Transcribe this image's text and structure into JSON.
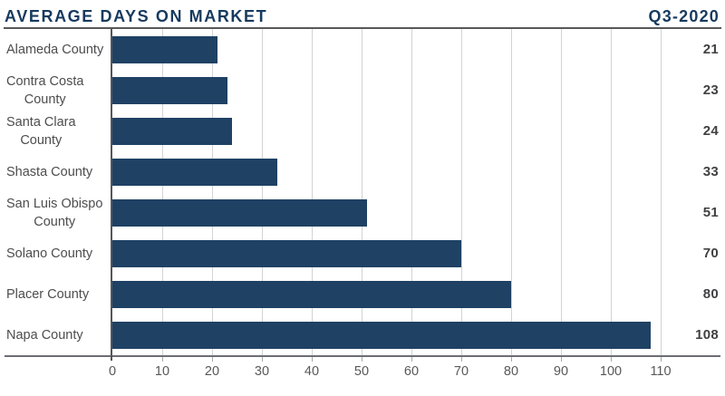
{
  "header": {
    "title": "AVERAGE DAYS ON MARKET",
    "period": "Q3-2020"
  },
  "colors": {
    "bar_navy": "#1f4164",
    "title_navy": "#173a5e",
    "gridline_gray": "#d1d3d4",
    "axis_dark_gray": "#55565a",
    "axis_light_gray": "#6d6e71",
    "tick_gray": "#a7a9ac",
    "category_text": "#4d4d4f",
    "value_text": "#414042"
  },
  "chart_data": {
    "type": "bar",
    "orientation": "horizontal",
    "title": "AVERAGE DAYS ON MARKET",
    "subtitle": "Q3-2020",
    "categories": [
      "Alameda County",
      "Contra Costa County",
      "Santa Clara County",
      "Shasta County",
      "San Luis Obispo County",
      "Solano County",
      "Placer County",
      "Napa County"
    ],
    "category_lines": [
      [
        "Alameda County"
      ],
      [
        "Contra Costa",
        "County"
      ],
      [
        "Santa Clara",
        "County"
      ],
      [
        "Shasta County"
      ],
      [
        "San Luis Obispo",
        "County"
      ],
      [
        "Solano County"
      ],
      [
        "Placer County"
      ],
      [
        "Napa County"
      ]
    ],
    "values": [
      21,
      23,
      24,
      33,
      51,
      70,
      80,
      108
    ],
    "value_labels": [
      "21",
      "23",
      "24",
      "33",
      "51",
      "70",
      "80",
      "108"
    ],
    "xlim": [
      0,
      110
    ],
    "x_ticks": [
      0,
      10,
      20,
      30,
      40,
      50,
      60,
      70,
      80,
      90,
      100,
      110
    ],
    "grid": true,
    "legend": false,
    "value_labels_position": "right-margin"
  }
}
